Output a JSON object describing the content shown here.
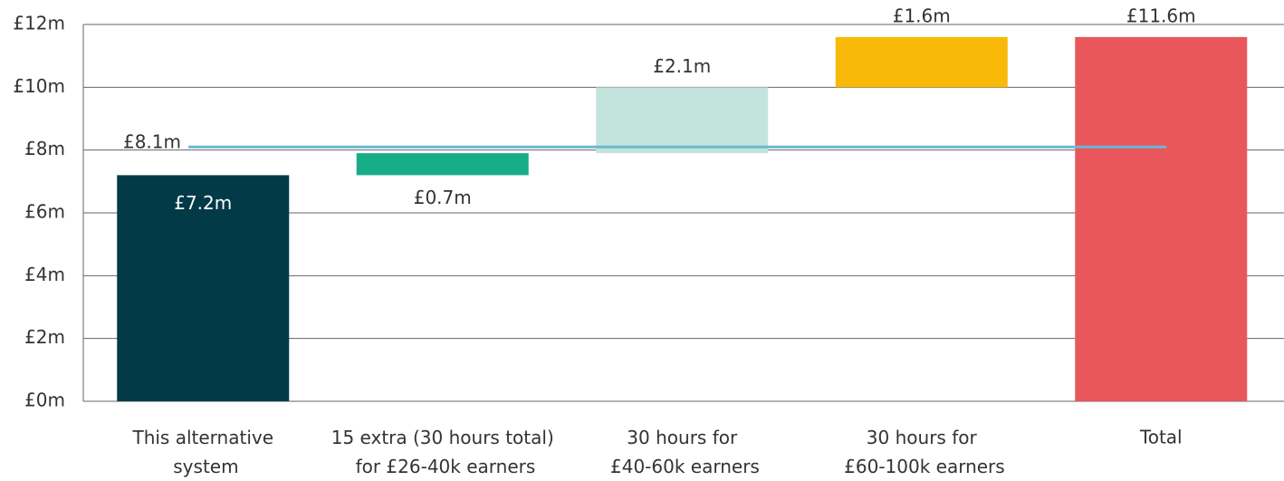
{
  "chart_data": {
    "type": "waterfall",
    "categories": [
      "This alternative\nsystem",
      "15 extra (30 hours total)\nfor £26-40k earners",
      "30 hours for\n£40-60k earners",
      "30 hours for\n£60-100k earners",
      "Total"
    ],
    "values": [
      7.2,
      0.7,
      2.1,
      1.6,
      11.6
    ],
    "value_labels": [
      "£7.2m",
      "£0.7m",
      "£2.1m",
      "£1.6m",
      "£11.6m"
    ],
    "colors": [
      "#023a47",
      "#17ad87",
      "#c2e4dc",
      "#f9b908",
      "#e9575c"
    ],
    "total_index": 4,
    "reference_line": {
      "value": 8.1,
      "label": "£8.1m",
      "color": "#6ab7d6"
    },
    "ylim": [
      0,
      12
    ],
    "yticks": [
      {
        "value": 0,
        "label": "£0m"
      },
      {
        "value": 2,
        "label": "£2m"
      },
      {
        "value": 4,
        "label": "£4m"
      },
      {
        "value": 6,
        "label": "£6m"
      },
      {
        "value": 8,
        "label": "£8m"
      },
      {
        "value": 10,
        "label": "£10m"
      },
      {
        "value": 12,
        "label": "£12m"
      }
    ],
    "grid": true
  }
}
